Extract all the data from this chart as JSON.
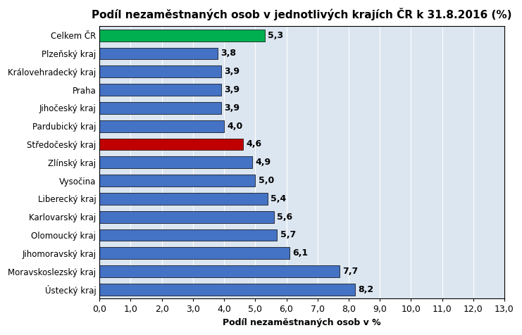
{
  "title": "Podíl nezaměstnaných osob v jednotlivých krajích ČR k 31.8.2016 (%)",
  "xlabel": "Podíl nezaměstnaných osob v %",
  "categories": [
    "Celkem ČR",
    "Plzeňský kraj",
    "Královehradecký kraj",
    "Praha",
    "Jihočeský kraj",
    "Pardubický kraj",
    "Středočeský kraj",
    "Zlínský kraj",
    "Vysočina",
    "Liberecký kraj",
    "Karlovarský kraj",
    "Olomoucký kraj",
    "Jihomoravský kraj",
    "Moravskoslezský kraj",
    "Ústecký kraj"
  ],
  "values": [
    5.3,
    3.8,
    3.9,
    3.9,
    3.9,
    4.0,
    4.6,
    4.9,
    5.0,
    5.4,
    5.6,
    5.7,
    6.1,
    7.7,
    8.2
  ],
  "bar_colors": [
    "#00b050",
    "#4472c4",
    "#4472c4",
    "#4472c4",
    "#4472c4",
    "#4472c4",
    "#c00000",
    "#4472c4",
    "#4472c4",
    "#4472c4",
    "#4472c4",
    "#4472c4",
    "#4472c4",
    "#4472c4",
    "#4472c4"
  ],
  "xlim": [
    0,
    13.0
  ],
  "xticks": [
    0.0,
    1.0,
    2.0,
    3.0,
    4.0,
    5.0,
    6.0,
    7.0,
    8.0,
    9.0,
    10.0,
    11.0,
    12.0,
    13.0
  ],
  "xtick_labels": [
    "0,0",
    "1,0",
    "2,0",
    "3,0",
    "4,0",
    "5,0",
    "6,0",
    "7,0",
    "8,0",
    "9,0",
    "10,0",
    "11,0",
    "12,0",
    "13,0"
  ],
  "title_fontsize": 11,
  "xlabel_fontsize": 9,
  "ytick_fontsize": 8.5,
  "xtick_fontsize": 9,
  "value_fontsize": 9,
  "background_color": "#ffffff",
  "plot_bg_color": "#dce6f1"
}
